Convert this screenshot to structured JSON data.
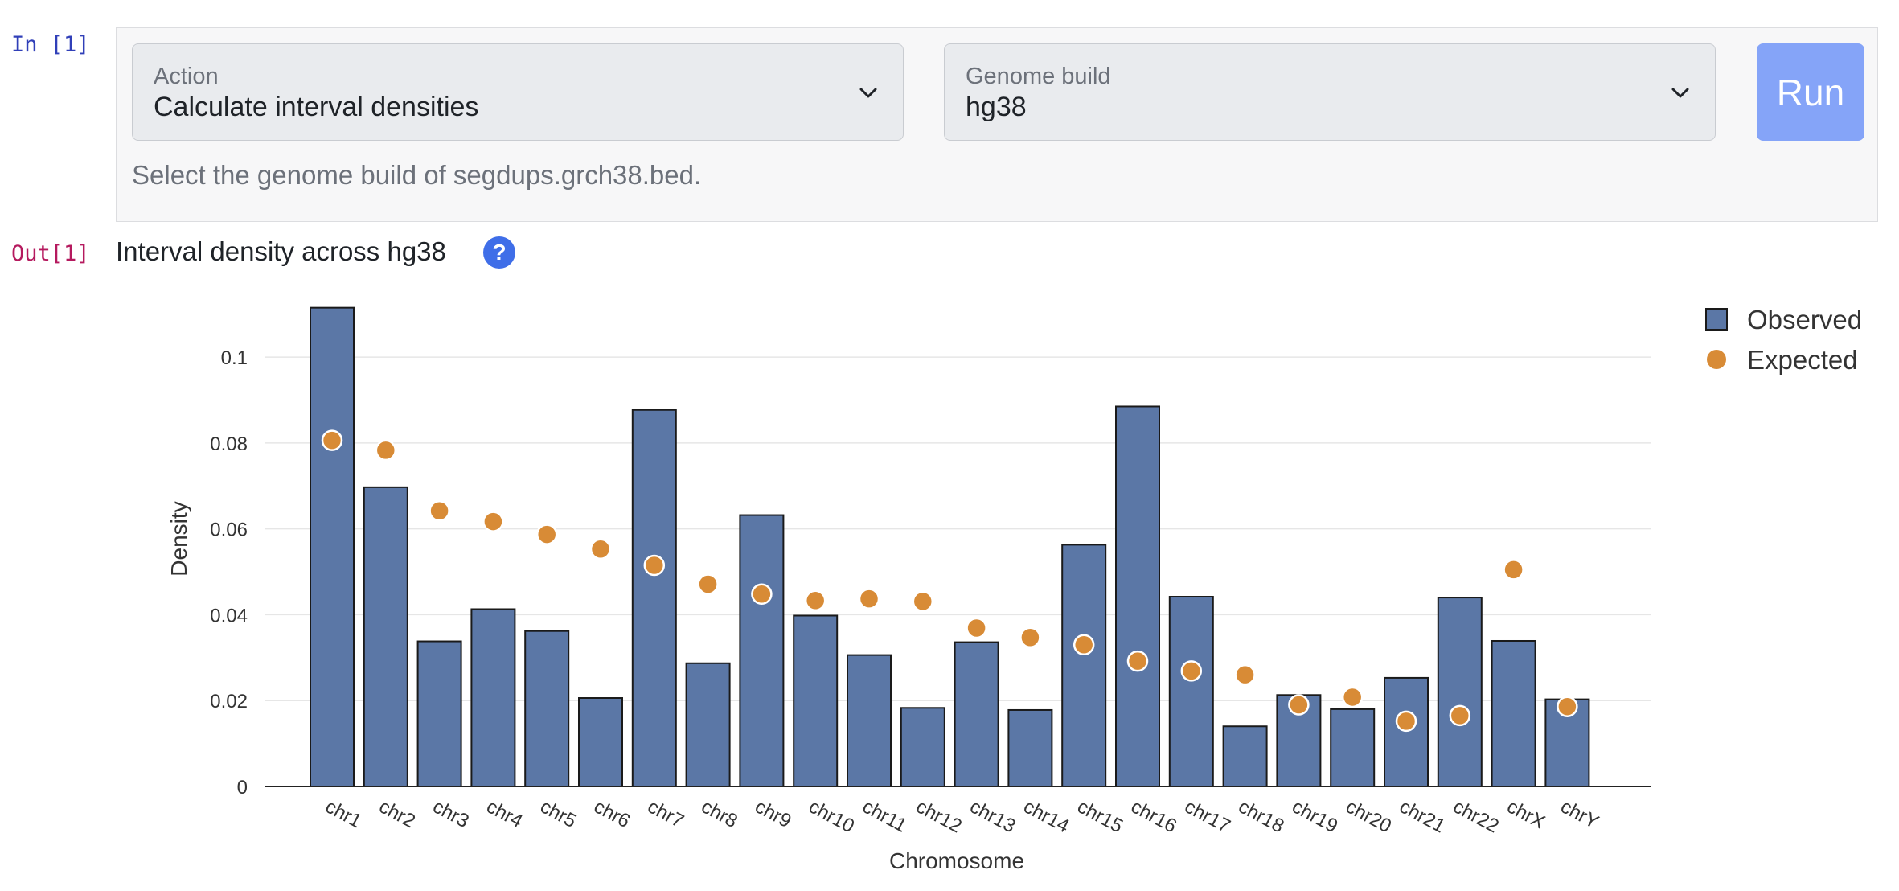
{
  "notebook": {
    "input_prompt": "In [1]",
    "output_prompt": "Out[1]"
  },
  "form": {
    "action": {
      "label": "Action",
      "value": "Calculate interval densities"
    },
    "genome_build": {
      "label": "Genome build",
      "value": "hg38"
    },
    "run_label": "Run",
    "help_text": "Select the genome build of segdups.grch38.bed."
  },
  "output": {
    "title": "Interval density across hg38",
    "help_icon_glyph": "?"
  },
  "colors": {
    "observed": "#5b77a6",
    "expected": "#d88b36",
    "help_icon": "#3f6ee8",
    "run_button": "#85a4f8"
  },
  "chart_data": {
    "type": "bar",
    "xlabel": "Chromosome",
    "ylabel": "Density",
    "ylim": [
      0,
      0.112
    ],
    "yticks": [
      0,
      0.02,
      0.04,
      0.06,
      0.08,
      0.1
    ],
    "ytick_labels": [
      "0",
      "0.02",
      "0.04",
      "0.06",
      "0.08",
      "0.1"
    ],
    "grid": true,
    "legend_position": "top-right",
    "categories": [
      "chr1",
      "chr2",
      "chr3",
      "chr4",
      "chr5",
      "chr6",
      "chr7",
      "chr8",
      "chr9",
      "chr10",
      "chr11",
      "chr12",
      "chr13",
      "chr14",
      "chr15",
      "chr16",
      "chr17",
      "chr18",
      "chr19",
      "chr20",
      "chr21",
      "chr22",
      "chrX",
      "chrY"
    ],
    "series": [
      {
        "name": "Observed",
        "type": "bar",
        "values": [
          0.1115,
          0.0697,
          0.0338,
          0.0413,
          0.0362,
          0.0206,
          0.0877,
          0.0287,
          0.0632,
          0.0398,
          0.0306,
          0.0183,
          0.0336,
          0.0178,
          0.0563,
          0.0885,
          0.0442,
          0.014,
          0.0213,
          0.018,
          0.0253,
          0.044,
          0.0339,
          0.0203
        ]
      },
      {
        "name": "Expected",
        "type": "scatter",
        "values": [
          0.0806,
          0.0783,
          0.0642,
          0.0617,
          0.0587,
          0.0553,
          0.0515,
          0.0471,
          0.0448,
          0.0433,
          0.0437,
          0.0431,
          0.0369,
          0.0347,
          0.033,
          0.0292,
          0.0269,
          0.026,
          0.019,
          0.0208,
          0.0152,
          0.0165,
          0.0505,
          0.0186
        ]
      }
    ]
  }
}
